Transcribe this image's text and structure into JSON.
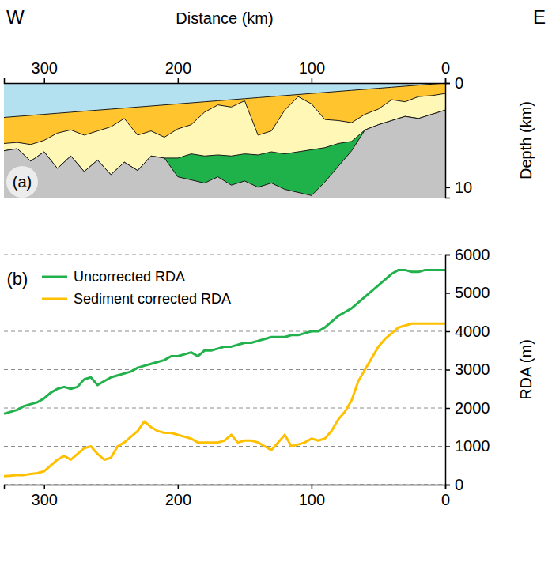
{
  "chart_data": [
    {
      "type": "area",
      "title": "(a)",
      "annotations": [
        "W",
        "E"
      ],
      "x_label": "Distance (km)",
      "y_label": "Depth (km)",
      "xlim": [
        330,
        0
      ],
      "xticks": [
        300,
        200,
        100,
        0
      ],
      "ylim": [
        0,
        11
      ],
      "yticks": [
        0,
        10
      ],
      "x": [
        330,
        320,
        310,
        300,
        290,
        280,
        270,
        260,
        250,
        240,
        230,
        220,
        210,
        200,
        190,
        180,
        170,
        160,
        150,
        140,
        130,
        120,
        110,
        100,
        90,
        80,
        70,
        60,
        50,
        40,
        30,
        20,
        10,
        0
      ],
      "series": [
        {
          "color": "#b4e1f0",
          "values": [
            0,
            0,
            0,
            0,
            0,
            0,
            0,
            0,
            0,
            0,
            0,
            0,
            0,
            0,
            0,
            0,
            0,
            0,
            0,
            0,
            0,
            0,
            0,
            0,
            0,
            0,
            0,
            0,
            0,
            0,
            0,
            0,
            0,
            0
          ]
        },
        {
          "color": "#ffc42e",
          "values": [
            3.3,
            3.2,
            3.1,
            3.0,
            2.9,
            2.8,
            2.7,
            2.6,
            2.5,
            2.4,
            2.3,
            2.2,
            2.1,
            2.0,
            1.9,
            1.8,
            1.7,
            1.6,
            1.5,
            1.4,
            1.3,
            1.2,
            1.1,
            1.0,
            0.9,
            0.8,
            0.7,
            0.6,
            0.5,
            0.4,
            0.3,
            0.2,
            0.1,
            0
          ]
        },
        {
          "color": "#fff7b5",
          "values": [
            5.8,
            5.7,
            5.9,
            5.5,
            4.8,
            4.5,
            5.0,
            4.6,
            4.2,
            3.4,
            5.0,
            4.6,
            5.2,
            4.4,
            4.0,
            2.8,
            2.1,
            2.3,
            1.7,
            5.0,
            4.6,
            2.6,
            1.3,
            2.0,
            3.5,
            3.6,
            3.8,
            3.0,
            2.5,
            1.6,
            1.8,
            1.3,
            1.2,
            1.0
          ]
        },
        {
          "color": "#1fb24a",
          "values": [
            6.5,
            6.3,
            7.5,
            6.6,
            8.2,
            7.0,
            8.5,
            7.4,
            8.8,
            7.6,
            8.4,
            7.0,
            7.2,
            7.2,
            6.8,
            7.0,
            6.9,
            7.0,
            6.8,
            6.9,
            6.6,
            6.8,
            6.6,
            6.4,
            6.2,
            5.8,
            5.6,
            4.5,
            4.0,
            3.6,
            3.2,
            3.4,
            3.0,
            2.6
          ]
        },
        {
          "color": "#c4c4c4",
          "values": [
            6.5,
            6.3,
            7.5,
            6.6,
            8.2,
            7.0,
            8.5,
            7.4,
            8.8,
            7.6,
            8.4,
            7.0,
            7.2,
            9.0,
            9.3,
            9.6,
            9.0,
            9.8,
            9.4,
            10.0,
            9.6,
            10.2,
            10.5,
            10.8,
            9.5,
            8.0,
            6.5,
            4.5,
            4.0,
            3.6,
            3.2,
            3.4,
            3.0,
            2.6
          ]
        }
      ]
    },
    {
      "type": "line",
      "title": "(b)",
      "y_label": "RDA (m)",
      "xlim": [
        330,
        0
      ],
      "xticks": [
        300,
        200,
        100,
        0
      ],
      "ylim": [
        0,
        6000
      ],
      "yticks": [
        0,
        1000,
        2000,
        3000,
        4000,
        5000,
        6000
      ],
      "grid": true,
      "legend": "upper left",
      "x": [
        330,
        325,
        320,
        315,
        310,
        305,
        300,
        295,
        290,
        285,
        280,
        275,
        270,
        265,
        260,
        255,
        250,
        245,
        240,
        235,
        230,
        225,
        220,
        215,
        210,
        205,
        200,
        195,
        190,
        185,
        180,
        175,
        170,
        165,
        160,
        155,
        150,
        145,
        140,
        135,
        130,
        125,
        120,
        115,
        110,
        105,
        100,
        95,
        90,
        85,
        80,
        75,
        70,
        65,
        60,
        55,
        50,
        45,
        40,
        35,
        30,
        25,
        20,
        15,
        10,
        5,
        0
      ],
      "series": [
        {
          "name": "Uncorrected RDA",
          "color": "#22b14c",
          "values": [
            1850,
            1900,
            1950,
            2050,
            2100,
            2150,
            2250,
            2400,
            2500,
            2550,
            2500,
            2550,
            2750,
            2800,
            2600,
            2700,
            2800,
            2850,
            2900,
            2950,
            3050,
            3100,
            3150,
            3200,
            3250,
            3350,
            3350,
            3400,
            3450,
            3350,
            3500,
            3500,
            3550,
            3600,
            3600,
            3650,
            3700,
            3700,
            3750,
            3800,
            3850,
            3850,
            3850,
            3900,
            3900,
            3950,
            4000,
            4000,
            4100,
            4250,
            4400,
            4500,
            4600,
            4750,
            4900,
            5050,
            5200,
            5350,
            5500,
            5600,
            5600,
            5550,
            5550,
            5600,
            5600,
            5600,
            5600
          ]
        },
        {
          "name": "Sediment corrected RDA",
          "color": "#ffc000",
          "values": [
            220,
            230,
            250,
            250,
            280,
            300,
            350,
            500,
            650,
            750,
            650,
            800,
            950,
            1000,
            800,
            650,
            700,
            1000,
            1100,
            1250,
            1400,
            1650,
            1500,
            1400,
            1350,
            1350,
            1300,
            1250,
            1200,
            1100,
            1100,
            1100,
            1100,
            1150,
            1300,
            1100,
            1150,
            1150,
            1100,
            1000,
            900,
            1100,
            1300,
            1000,
            1050,
            1100,
            1200,
            1150,
            1200,
            1400,
            1700,
            1900,
            2200,
            2700,
            3000,
            3300,
            3600,
            3800,
            3950,
            4100,
            4150,
            4200,
            4200,
            4200,
            4200,
            4200,
            4200
          ]
        }
      ]
    }
  ]
}
